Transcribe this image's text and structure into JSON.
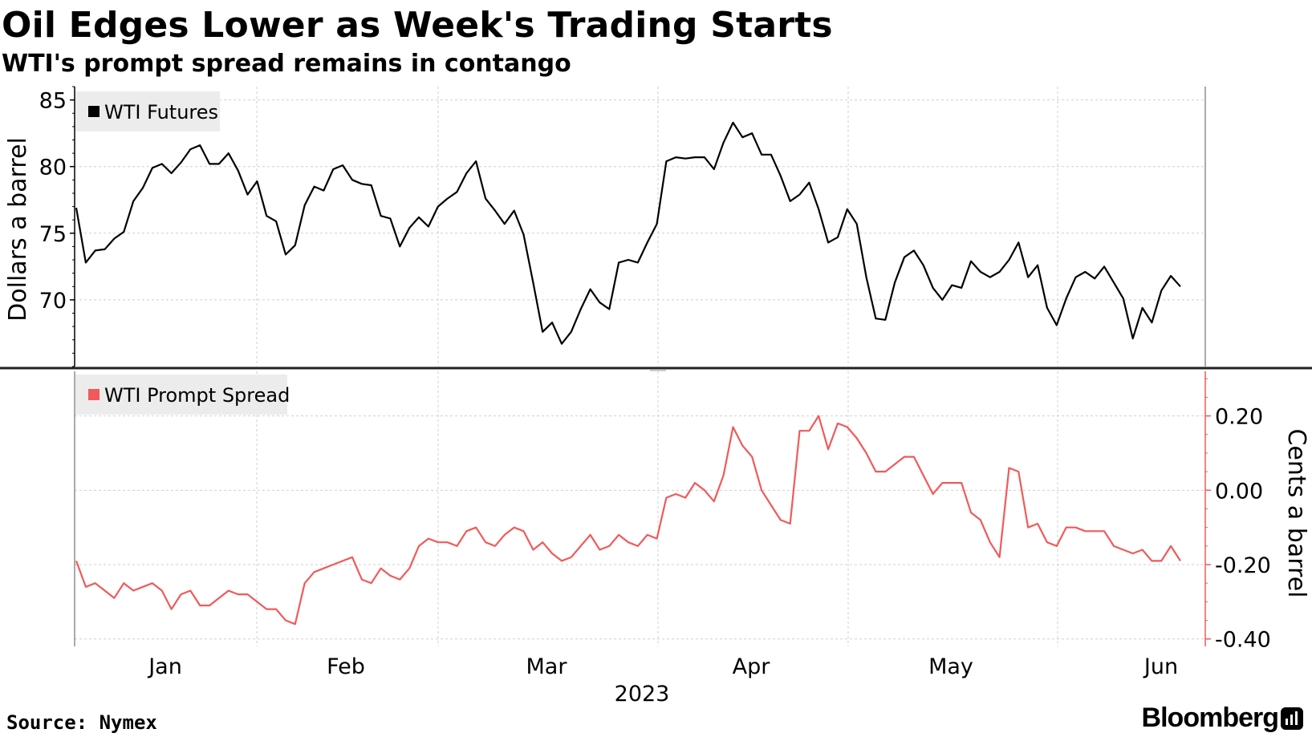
{
  "title": "Oil Edges Lower as Week's Trading Starts",
  "subtitle": "WTI's prompt spread remains in contango",
  "source": "Source: Nymex",
  "brand": "Bloomberg",
  "chart_data": [
    {
      "type": "line",
      "series": [
        {
          "name": "WTI Futures",
          "color": "#000000",
          "values": [
            76.9,
            72.8,
            73.7,
            73.8,
            74.6,
            75.1,
            77.4,
            78.4,
            79.9,
            80.2,
            79.5,
            80.3,
            81.3,
            81.6,
            80.2,
            80.2,
            81.0,
            79.7,
            77.9,
            78.9,
            76.3,
            75.9,
            73.4,
            74.1,
            77.1,
            78.5,
            78.2,
            79.8,
            80.1,
            79.0,
            78.7,
            78.6,
            76.3,
            76.1,
            74.0,
            75.4,
            76.2,
            75.5,
            77.0,
            77.6,
            78.1,
            79.5,
            80.4,
            77.6,
            76.7,
            75.7,
            76.7,
            74.9,
            71.3,
            67.6,
            68.3,
            66.7,
            67.6,
            69.3,
            70.8,
            69.8,
            69.3,
            72.8,
            73.0,
            72.8,
            74.3,
            75.7,
            80.4,
            80.7,
            80.6,
            80.7,
            80.7,
            79.8,
            81.8,
            83.3,
            82.2,
            82.5,
            80.9,
            80.9,
            79.3,
            77.4,
            77.9,
            78.8,
            76.8,
            74.3,
            74.7,
            76.8,
            75.7,
            71.7,
            68.6,
            68.5,
            71.3,
            73.2,
            73.7,
            72.6,
            70.9,
            70.0,
            71.1,
            70.9,
            72.9,
            72.1,
            71.7,
            72.1,
            73.0,
            74.3,
            71.7,
            72.6,
            69.4,
            68.1,
            70.1,
            71.7,
            72.1,
            71.6,
            72.5,
            71.3,
            70.1,
            67.1,
            69.4,
            68.3,
            70.7,
            71.8,
            71.0
          ]
        }
      ],
      "ylabel": "Dollars a barrel",
      "ylim": [
        65,
        86
      ],
      "yticks": [
        "70",
        "75",
        "80",
        "85"
      ],
      "xticks": [
        "Jan",
        "Feb",
        "Mar",
        "Apr",
        "May",
        "Jun"
      ],
      "x_axis_year": "2023",
      "legend_position": "top-left",
      "y_axis_side": "left",
      "grid": true
    },
    {
      "type": "line",
      "series": [
        {
          "name": "WTI Prompt Spread",
          "color": "#f05a5a",
          "values": [
            -0.19,
            -0.26,
            -0.25,
            -0.27,
            -0.29,
            -0.25,
            -0.27,
            -0.26,
            -0.25,
            -0.27,
            -0.32,
            -0.28,
            -0.27,
            -0.31,
            -0.31,
            -0.29,
            -0.27,
            -0.28,
            -0.28,
            -0.3,
            -0.32,
            -0.32,
            -0.35,
            -0.36,
            -0.25,
            -0.22,
            -0.21,
            -0.2,
            -0.19,
            -0.18,
            -0.24,
            -0.25,
            -0.21,
            -0.23,
            -0.24,
            -0.21,
            -0.15,
            -0.13,
            -0.14,
            -0.14,
            -0.15,
            -0.11,
            -0.1,
            -0.14,
            -0.15,
            -0.12,
            -0.1,
            -0.11,
            -0.16,
            -0.14,
            -0.17,
            -0.19,
            -0.18,
            -0.15,
            -0.12,
            -0.16,
            -0.15,
            -0.12,
            -0.14,
            -0.15,
            -0.12,
            -0.13,
            -0.02,
            -0.01,
            -0.02,
            0.02,
            0.0,
            -0.03,
            0.04,
            0.17,
            0.12,
            0.09,
            0.0,
            -0.04,
            -0.08,
            -0.09,
            0.16,
            0.16,
            0.2,
            0.11,
            0.18,
            0.17,
            0.14,
            0.1,
            0.05,
            0.05,
            0.07,
            0.09,
            0.09,
            0.04,
            -0.01,
            0.02,
            0.02,
            0.02,
            -0.06,
            -0.08,
            -0.14,
            -0.18,
            0.06,
            0.05,
            -0.1,
            -0.09,
            -0.14,
            -0.15,
            -0.1,
            -0.1,
            -0.11,
            -0.11,
            -0.11,
            -0.15,
            -0.16,
            -0.17,
            -0.16,
            -0.19,
            -0.19,
            -0.15,
            -0.19
          ]
        }
      ],
      "ylabel": "Cents a barrel",
      "ylim": [
        -0.42,
        0.32
      ],
      "yticks": [
        "-0.40",
        "-0.20",
        "0.00",
        "0.20"
      ],
      "xticks": [
        "Jan",
        "Feb",
        "Mar",
        "Apr",
        "May",
        "Jun"
      ],
      "x_axis_year": "2023",
      "legend_position": "top-left",
      "y_axis_side": "right",
      "grid": true
    }
  ]
}
